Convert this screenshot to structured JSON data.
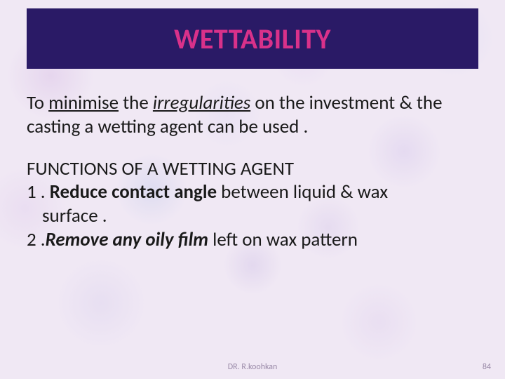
{
  "title": {
    "text": "WETTABILITY",
    "color": "#d9318a",
    "box_bg": "#2a1a66"
  },
  "body": {
    "text_color": "#1a1a1a",
    "intro": {
      "pre": "To ",
      "minimise": "minimise",
      "mid": " the ",
      "irregularities": "irregularities",
      "post": " on the investment & the casting a wetting agent can be used ."
    },
    "functions_heading": "FUNCTIONS OF A WETTING AGENT",
    "item1": {
      "num": "1 . ",
      "bold": "Reduce contact angle",
      "rest": " between liquid & wax",
      "line2": "surface ."
    },
    "item2": {
      "num": "2 .",
      "bold": "Remove any oily film",
      "rest": " left on wax pattern"
    }
  },
  "footer": {
    "author": "DR. R.koohkan",
    "author_color": "#9a8aa8",
    "page": "84",
    "page_color": "#9a8aa8"
  }
}
